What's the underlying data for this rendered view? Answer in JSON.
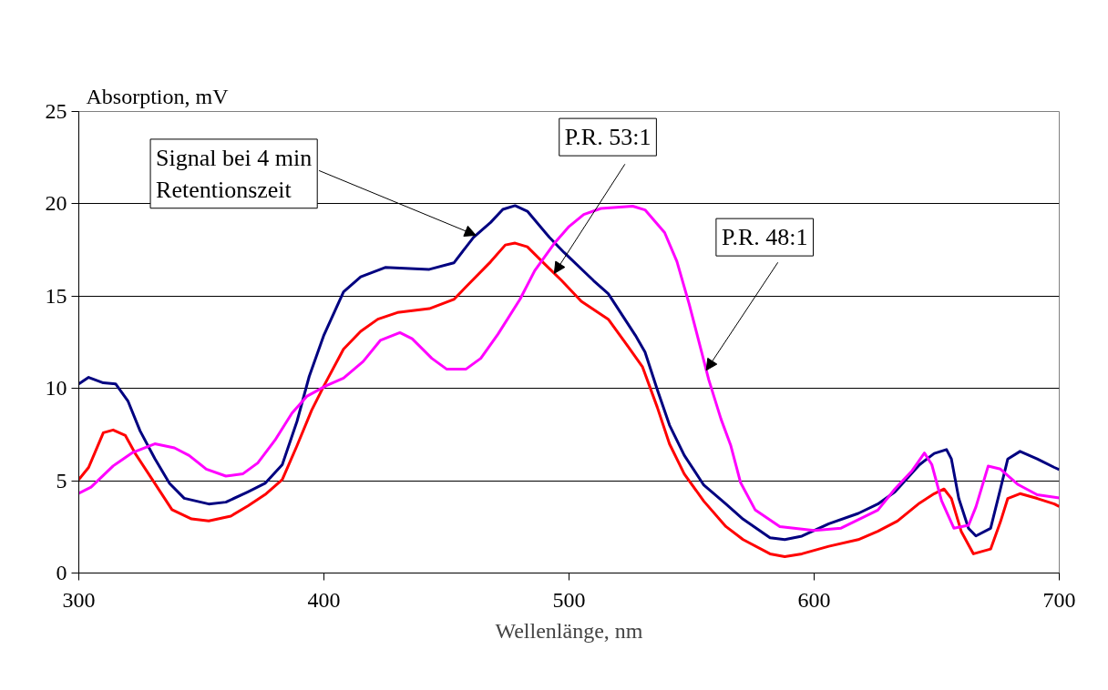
{
  "chart_data": {
    "type": "line",
    "xlabel": "Wellenlänge, nm",
    "ylabel": "Absorption, mV",
    "xlim": [
      300,
      700
    ],
    "ylim": [
      0,
      25
    ],
    "xticks": [
      300,
      400,
      500,
      600,
      700
    ],
    "yticks": [
      0,
      5,
      10,
      15,
      20,
      25
    ],
    "grid": "y",
    "line_style": "solid",
    "marker": "none",
    "series": [
      {
        "name": "Signal bei 4 min Retentionszeit",
        "color": "#000080",
        "x": [
          300,
          304,
          310,
          315,
          320,
          325,
          331,
          337,
          343,
          353,
          360,
          369,
          376,
          383,
          389,
          394,
          400,
          408,
          415,
          425,
          443,
          453,
          461,
          468,
          473,
          478,
          483,
          492,
          498,
          510,
          516,
          527,
          531,
          536,
          541,
          547,
          555,
          564,
          571,
          582,
          588,
          595,
          606,
          618,
          626,
          633,
          643,
          649,
          654,
          656,
          659,
          663,
          666,
          672,
          676,
          679,
          684,
          691,
          698,
          700
        ],
        "values": [
          10.25,
          10.6,
          10.3,
          10.25,
          9.33,
          7.7,
          6.2,
          4.86,
          4.05,
          3.74,
          3.84,
          4.4,
          4.86,
          5.87,
          8.21,
          10.65,
          12.89,
          15.23,
          16.04,
          16.55,
          16.45,
          16.8,
          18.18,
          18.99,
          19.7,
          19.9,
          19.6,
          18.18,
          17.36,
          15.84,
          15.13,
          12.89,
          11.97,
          9.94,
          8.01,
          6.38,
          4.76,
          3.74,
          2.92,
          1.91,
          1.81,
          2.0,
          2.67,
          3.23,
          3.74,
          4.4,
          5.87,
          6.48,
          6.69,
          6.18,
          4.04,
          2.42,
          2.01,
          2.42,
          4.55,
          6.18,
          6.59,
          6.18,
          5.72,
          5.6
        ]
      },
      {
        "name": "P.R. 53:1",
        "color": "#ff0000",
        "x": [
          300,
          304,
          310,
          314,
          319,
          323,
          330,
          338,
          346,
          353,
          362,
          369,
          376,
          383,
          389,
          395,
          400,
          408,
          415,
          422,
          430,
          443,
          453,
          459,
          468,
          474,
          478,
          483,
          490,
          497,
          505,
          516,
          524,
          530,
          536,
          541,
          547,
          555,
          564,
          571,
          582,
          588,
          595,
          606,
          618,
          626,
          634,
          643,
          649,
          653,
          656,
          660,
          665,
          672,
          676,
          679,
          684,
          691,
          698,
          700
        ],
        "values": [
          5.06,
          5.72,
          7.6,
          7.75,
          7.45,
          6.48,
          5.06,
          3.43,
          2.93,
          2.82,
          3.08,
          3.64,
          4.25,
          5.06,
          6.89,
          8.82,
          10.14,
          12.13,
          13.09,
          13.75,
          14.11,
          14.32,
          14.82,
          15.64,
          16.86,
          17.77,
          17.87,
          17.67,
          16.75,
          15.84,
          14.72,
          13.75,
          12.28,
          11.16,
          8.98,
          6.99,
          5.37,
          3.89,
          2.52,
          1.81,
          1.04,
          0.89,
          1.04,
          1.45,
          1.81,
          2.26,
          2.82,
          3.79,
          4.3,
          4.55,
          4.04,
          2.26,
          1.04,
          1.3,
          2.77,
          4.04,
          4.3,
          4.04,
          3.74,
          3.6
        ]
      },
      {
        "name": "P.R. 48:1",
        "color": "#ff00ff",
        "x": [
          300,
          305,
          314,
          322,
          331,
          339,
          345,
          352,
          360,
          367,
          373,
          380,
          387,
          393,
          401,
          408,
          416,
          423,
          431,
          436,
          444,
          450,
          458,
          464,
          471,
          480,
          486,
          494,
          500,
          506,
          513,
          526,
          531,
          539,
          544,
          549,
          557,
          562,
          566,
          570,
          576,
          586,
          600,
          611,
          626,
          633,
          640,
          645,
          648,
          652,
          657,
          663,
          666,
          671,
          676,
          683,
          691,
          700
        ],
        "values": [
          4.32,
          4.65,
          5.8,
          6.53,
          7.0,
          6.78,
          6.37,
          5.63,
          5.25,
          5.38,
          5.96,
          7.19,
          8.67,
          9.57,
          10.15,
          10.56,
          11.46,
          12.6,
          13.02,
          12.69,
          11.63,
          11.05,
          11.05,
          11.63,
          12.94,
          14.83,
          16.38,
          17.86,
          18.77,
          19.42,
          19.75,
          19.87,
          19.67,
          18.44,
          16.88,
          14.58,
          10.47,
          8.34,
          6.9,
          4.89,
          3.41,
          2.51,
          2.3,
          2.43,
          3.41,
          4.56,
          5.55,
          6.5,
          5.88,
          3.91,
          2.43,
          2.59,
          3.58,
          5.79,
          5.63,
          4.81,
          4.24,
          4.07
        ]
      }
    ]
  }
}
